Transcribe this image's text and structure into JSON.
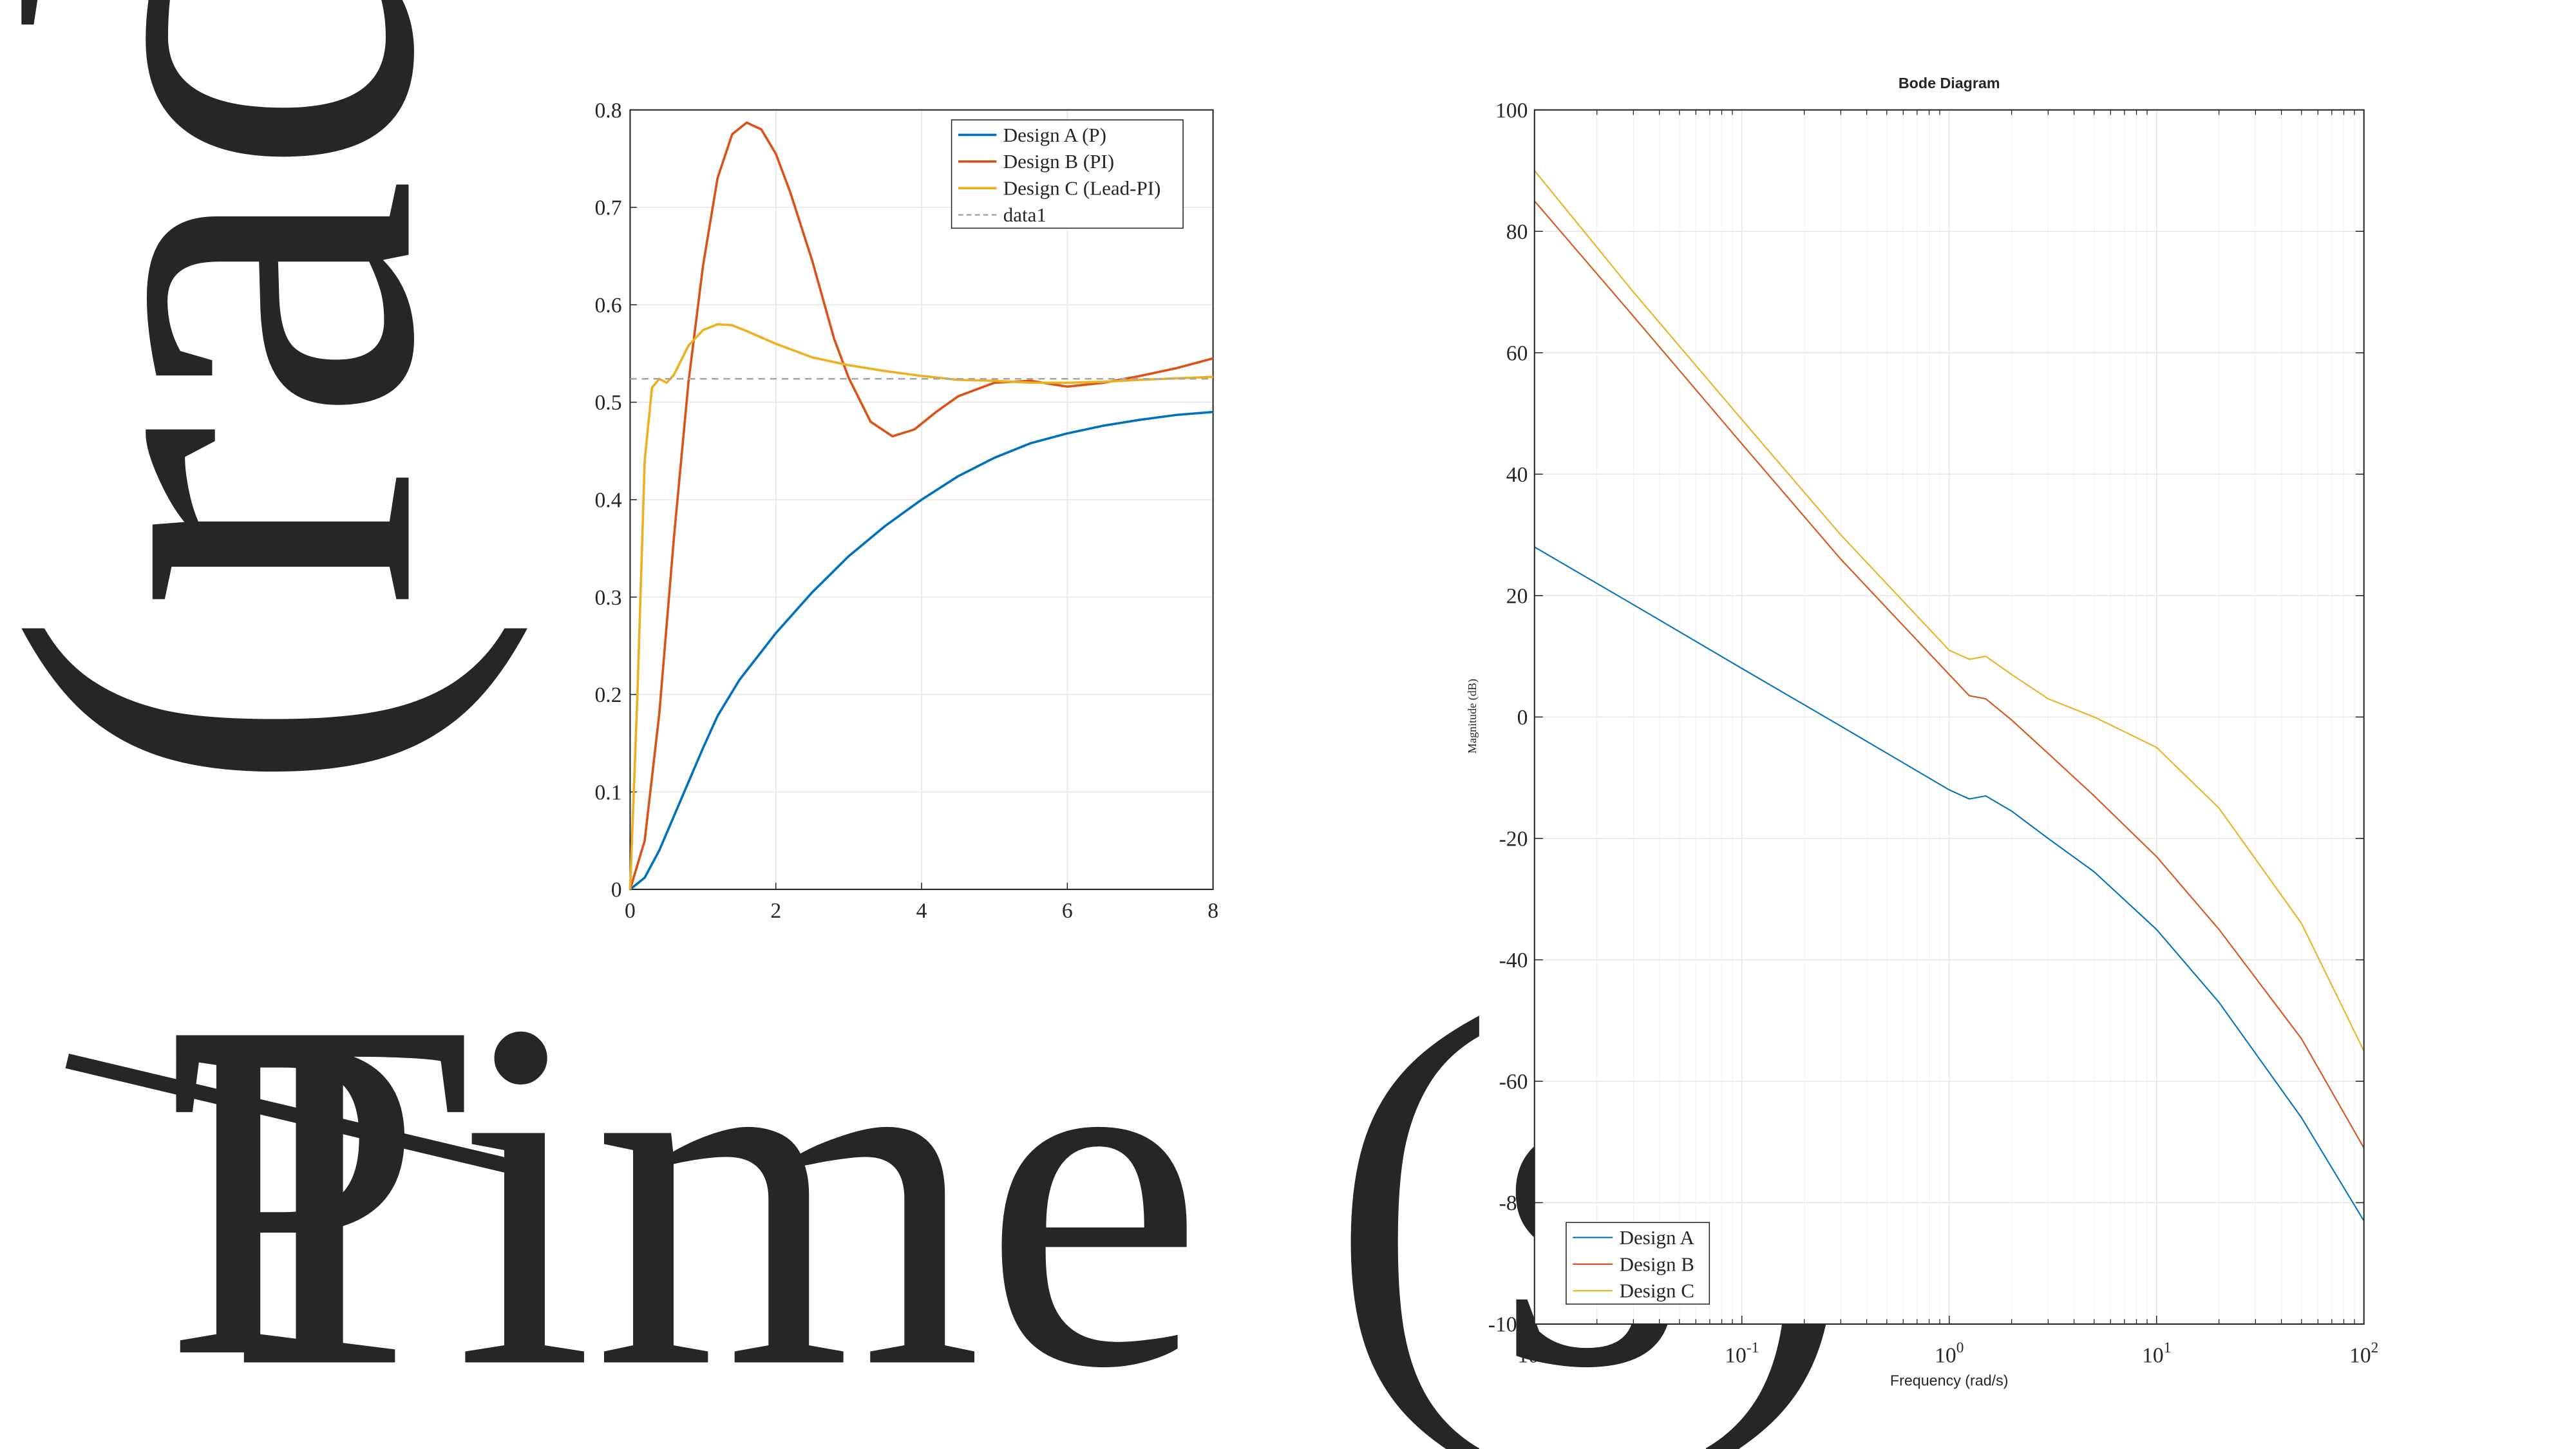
{
  "overlay_text": {
    "vertical_label": "(rad",
    "horizontal_label": "Time (s)",
    "p_glyph": "P"
  },
  "colors": {
    "blue": "#0072BD",
    "orange": "#D95319",
    "yellow": "#EDB120",
    "gray_dashed": "#A6A6A6",
    "axis": "#262626",
    "grid": "#E6E6E6"
  },
  "chart_data": [
    {
      "type": "line",
      "title": "",
      "xlabel": "",
      "ylabel": "",
      "xlim": [
        0,
        8
      ],
      "ylim": [
        0,
        0.8
      ],
      "xticks": [
        "0",
        "2",
        "4",
        "6",
        "8"
      ],
      "yticks": [
        "0",
        "0.1",
        "0.2",
        "0.3",
        "0.4",
        "0.5",
        "0.6",
        "0.7",
        "0.8"
      ],
      "grid": true,
      "legend_position": "top-right",
      "series": [
        {
          "name": "Design A (P)",
          "color": "#0072BD",
          "style": "solid",
          "points": [
            [
              0,
              0
            ],
            [
              0.2,
              0.012
            ],
            [
              0.4,
              0.04
            ],
            [
              0.6,
              0.075
            ],
            [
              0.8,
              0.11
            ],
            [
              1,
              0.145
            ],
            [
              1.2,
              0.178
            ],
            [
              1.5,
              0.215
            ],
            [
              2,
              0.263
            ],
            [
              2.5,
              0.305
            ],
            [
              3,
              0.342
            ],
            [
              3.5,
              0.373
            ],
            [
              4,
              0.4
            ],
            [
              4.5,
              0.424
            ],
            [
              5,
              0.443
            ],
            [
              5.5,
              0.458
            ],
            [
              6,
              0.468
            ],
            [
              6.5,
              0.476
            ],
            [
              7,
              0.482
            ],
            [
              7.5,
              0.487
            ],
            [
              8,
              0.49
            ]
          ]
        },
        {
          "name": "Design B (PI)",
          "color": "#D95319",
          "style": "solid",
          "points": [
            [
              0,
              0
            ],
            [
              0.2,
              0.05
            ],
            [
              0.4,
              0.18
            ],
            [
              0.6,
              0.36
            ],
            [
              0.8,
              0.52
            ],
            [
              1,
              0.64
            ],
            [
              1.2,
              0.73
            ],
            [
              1.4,
              0.775
            ],
            [
              1.6,
              0.787
            ],
            [
              1.8,
              0.78
            ],
            [
              2,
              0.755
            ],
            [
              2.2,
              0.715
            ],
            [
              2.5,
              0.645
            ],
            [
              2.8,
              0.565
            ],
            [
              3,
              0.525
            ],
            [
              3.3,
              0.48
            ],
            [
              3.6,
              0.465
            ],
            [
              3.9,
              0.472
            ],
            [
              4.2,
              0.49
            ],
            [
              4.5,
              0.506
            ],
            [
              5,
              0.52
            ],
            [
              5.5,
              0.522
            ],
            [
              6,
              0.516
            ],
            [
              6.5,
              0.52
            ],
            [
              7,
              0.527
            ],
            [
              7.5,
              0.535
            ],
            [
              8,
              0.545
            ]
          ]
        },
        {
          "name": "Design C (Lead-PI)",
          "color": "#EDB120",
          "style": "solid",
          "points": [
            [
              0,
              0
            ],
            [
              0.1,
              0.2
            ],
            [
              0.2,
              0.44
            ],
            [
              0.3,
              0.515
            ],
            [
              0.4,
              0.524
            ],
            [
              0.5,
              0.52
            ],
            [
              0.6,
              0.528
            ],
            [
              0.8,
              0.558
            ],
            [
              1,
              0.574
            ],
            [
              1.2,
              0.58
            ],
            [
              1.4,
              0.579
            ],
            [
              1.6,
              0.573
            ],
            [
              2,
              0.56
            ],
            [
              2.5,
              0.546
            ],
            [
              3,
              0.538
            ],
            [
              3.5,
              0.532
            ],
            [
              4,
              0.527
            ],
            [
              4.5,
              0.523
            ],
            [
              5,
              0.522
            ],
            [
              5.5,
              0.52
            ],
            [
              6,
              0.52
            ],
            [
              6.5,
              0.521
            ],
            [
              7,
              0.523
            ],
            [
              8,
              0.526
            ]
          ]
        },
        {
          "name": "data1",
          "color": "#A6A6A6",
          "style": "dashed",
          "points": [
            [
              0,
              0.524
            ],
            [
              8,
              0.524
            ]
          ]
        }
      ]
    },
    {
      "type": "line",
      "title": "Bode Diagram",
      "xlabel": "Frequency (rad/s)",
      "ylabel": "Magnitude (dB)",
      "xscale": "log",
      "xlim": [
        0.01,
        100
      ],
      "ylim": [
        -100,
        100
      ],
      "xticks": [
        {
          "base": "10",
          "exp": "-2"
        },
        {
          "base": "10",
          "exp": "-1"
        },
        {
          "base": "10",
          "exp": "0"
        },
        {
          "base": "10",
          "exp": "1"
        },
        {
          "base": "10",
          "exp": "2"
        }
      ],
      "yticks": [
        "100",
        "80",
        "60",
        "40",
        "20",
        "0",
        "-20",
        "-40",
        "-60",
        "-80",
        "-100"
      ],
      "grid": true,
      "legend_position": "bottom-left",
      "series": [
        {
          "name": "Design A",
          "color": "#0072BD",
          "points": [
            [
              0.01,
              28
            ],
            [
              0.03,
              18.5
            ],
            [
              0.1,
              8
            ],
            [
              0.3,
              -1.5
            ],
            [
              1,
              -12
            ],
            [
              1.25,
              -13.5
            ],
            [
              1.5,
              -13
            ],
            [
              2,
              -15.5
            ],
            [
              3,
              -20
            ],
            [
              5,
              -25.5
            ],
            [
              10,
              -35
            ],
            [
              20,
              -47
            ],
            [
              50,
              -66
            ],
            [
              100,
              -83
            ]
          ]
        },
        {
          "name": "Design B",
          "color": "#D95319",
          "points": [
            [
              0.01,
              85
            ],
            [
              0.03,
              66
            ],
            [
              0.1,
              45
            ],
            [
              0.3,
              26
            ],
            [
              1,
              7
            ],
            [
              1.25,
              3.5
            ],
            [
              1.5,
              3
            ],
            [
              2,
              -0.5
            ],
            [
              3,
              -6
            ],
            [
              5,
              -13
            ],
            [
              10,
              -23
            ],
            [
              20,
              -35
            ],
            [
              50,
              -53
            ],
            [
              100,
              -71
            ]
          ]
        },
        {
          "name": "Design C",
          "color": "#EDB120",
          "points": [
            [
              0.01,
              90
            ],
            [
              0.03,
              70
            ],
            [
              0.1,
              49
            ],
            [
              0.3,
              30
            ],
            [
              1,
              11
            ],
            [
              1.25,
              9.5
            ],
            [
              1.5,
              10
            ],
            [
              2,
              7
            ],
            [
              3,
              3
            ],
            [
              5,
              0
            ],
            [
              10,
              -5
            ],
            [
              20,
              -15
            ],
            [
              50,
              -34
            ],
            [
              100,
              -55
            ]
          ]
        }
      ]
    }
  ]
}
